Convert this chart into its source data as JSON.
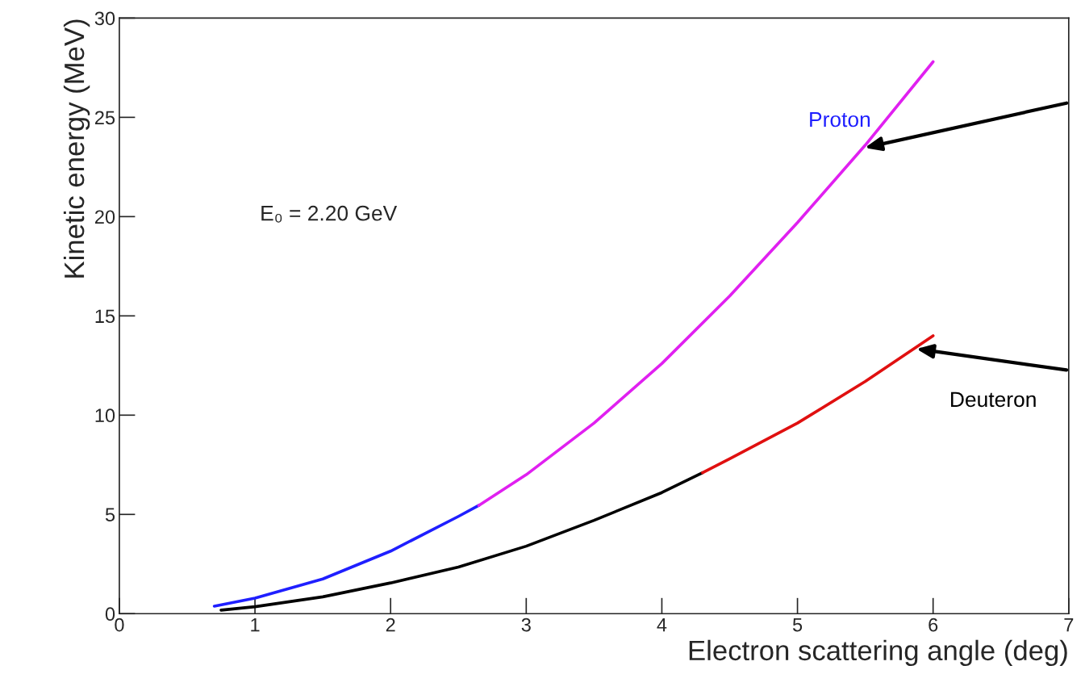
{
  "chart_data": {
    "type": "line",
    "xlabel": "Electron scattering angle (deg)",
    "ylabel": "Kinetic energy (MeV)",
    "xlim": [
      0,
      7
    ],
    "xticks": [
      0,
      1,
      2,
      3,
      4,
      5,
      6,
      7
    ],
    "ylim": [
      0,
      30
    ],
    "yticks": [
      0,
      5,
      10,
      15,
      20,
      25,
      30
    ],
    "grid": false,
    "legend": false,
    "marker": "none",
    "line_style": "solid",
    "series": [
      {
        "name": "Proton",
        "color": "#1f1fff",
        "x": [
          0.7,
          1.0,
          1.5,
          2.0,
          2.5,
          2.65
        ],
        "values": [
          0.38,
          0.78,
          1.75,
          3.15,
          4.9,
          5.45
        ]
      },
      {
        "color": "#e020f0",
        "x": [
          2.65,
          3.0,
          3.5,
          4.0,
          4.5,
          5.0,
          5.5,
          6.0
        ],
        "values": [
          5.45,
          7.0,
          9.6,
          12.6,
          16.0,
          19.7,
          23.6,
          27.8
        ]
      },
      {
        "name": "Deuteron",
        "color": "#000000",
        "x": [
          0.75,
          1.0,
          1.5,
          2.0,
          2.5,
          3.0,
          3.5,
          4.0,
          4.3
        ],
        "values": [
          0.18,
          0.35,
          0.85,
          1.55,
          2.35,
          3.4,
          4.7,
          6.1,
          7.1
        ]
      },
      {
        "color": "#e01010",
        "x": [
          4.3,
          4.5,
          5.0,
          5.5,
          6.0
        ],
        "values": [
          7.1,
          7.8,
          9.6,
          11.7,
          14.0
        ]
      }
    ],
    "annotations": [
      "E₀ = 2.20 GeV"
    ]
  }
}
